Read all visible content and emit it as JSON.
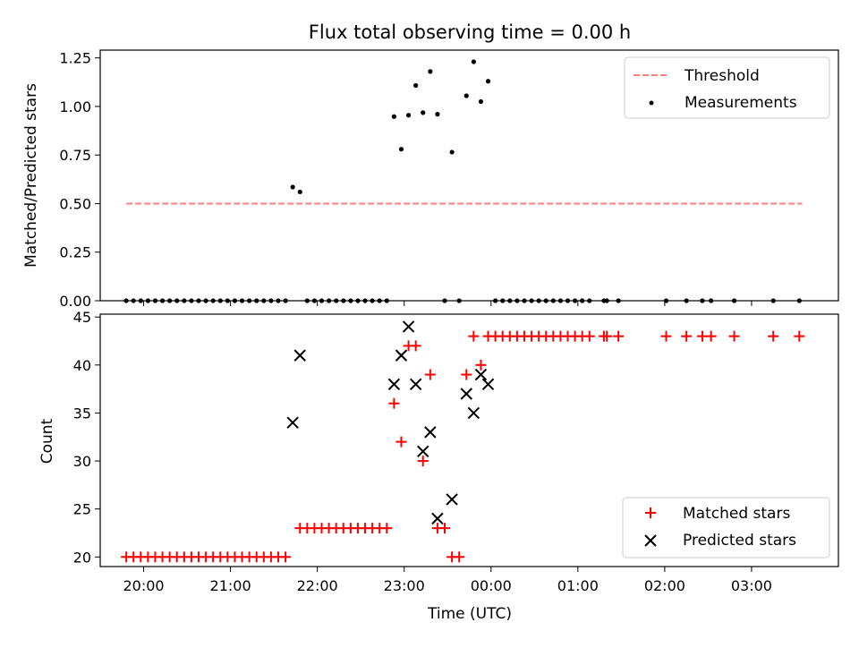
{
  "chart_data": [
    {
      "type": "scatter",
      "title": "Flux total observing time = 0.00 h",
      "xlabel": "",
      "ylabel": "Matched/Predicted stars",
      "xlim": [
        "19:30",
        "04:00"
      ],
      "ylim": [
        0,
        1.29
      ],
      "yticks": [
        "0.00",
        "0.25",
        "0.50",
        "0.75",
        "1.00",
        "1.25"
      ],
      "legend_position": "top-right",
      "grid": false,
      "series": [
        {
          "name": "Threshold",
          "style": "dashed-line",
          "color": "#ff7f7f",
          "x": [
            "19:48",
            "03:35"
          ],
          "y": [
            0.5,
            0.5
          ]
        },
        {
          "name": "Measurements",
          "style": "dots",
          "color": "#000000",
          "points": [
            [
              "19:48",
              0.0
            ],
            [
              "19:53",
              0.0
            ],
            [
              "19:58",
              0.0
            ],
            [
              "20:03",
              0.0
            ],
            [
              "20:08",
              0.0
            ],
            [
              "20:13",
              0.0
            ],
            [
              "20:18",
              0.0
            ],
            [
              "20:23",
              0.0
            ],
            [
              "20:28",
              0.0
            ],
            [
              "20:33",
              0.0
            ],
            [
              "20:38",
              0.0
            ],
            [
              "20:43",
              0.0
            ],
            [
              "20:48",
              0.0
            ],
            [
              "20:53",
              0.0
            ],
            [
              "20:58",
              0.0
            ],
            [
              "21:03",
              0.0
            ],
            [
              "21:08",
              0.0
            ],
            [
              "21:13",
              0.0
            ],
            [
              "21:18",
              0.0
            ],
            [
              "21:23",
              0.0
            ],
            [
              "21:28",
              0.0
            ],
            [
              "21:33",
              0.0
            ],
            [
              "21:38",
              0.0
            ],
            [
              "21:43",
              0.585
            ],
            [
              "21:48",
              0.56
            ],
            [
              "21:53",
              0.0
            ],
            [
              "21:58",
              0.0
            ],
            [
              "22:03",
              0.0
            ],
            [
              "22:08",
              0.0
            ],
            [
              "22:13",
              0.0
            ],
            [
              "22:18",
              0.0
            ],
            [
              "22:23",
              0.0
            ],
            [
              "22:28",
              0.0
            ],
            [
              "22:33",
              0.0
            ],
            [
              "22:38",
              0.0
            ],
            [
              "22:43",
              0.0
            ],
            [
              "22:48",
              0.0
            ],
            [
              "22:53",
              0.948
            ],
            [
              "22:58",
              0.78
            ],
            [
              "23:03",
              0.955
            ],
            [
              "23:08",
              1.108
            ],
            [
              "23:13",
              0.968
            ],
            [
              "23:18",
              1.18
            ],
            [
              "23:23",
              0.96
            ],
            [
              "23:28",
              0.0
            ],
            [
              "23:33",
              0.765
            ],
            [
              "23:38",
              0.0
            ],
            [
              "23:43",
              1.055
            ],
            [
              "23:48",
              1.23
            ],
            [
              "23:53",
              1.025
            ],
            [
              "23:58",
              1.13
            ],
            [
              "00:03",
              0.0
            ],
            [
              "00:08",
              0.0
            ],
            [
              "00:13",
              0.0
            ],
            [
              "00:18",
              0.0
            ],
            [
              "00:23",
              0.0
            ],
            [
              "00:28",
              0.0
            ],
            [
              "00:33",
              0.0
            ],
            [
              "00:38",
              0.0
            ],
            [
              "00:43",
              0.0
            ],
            [
              "00:48",
              0.0
            ],
            [
              "00:53",
              0.0
            ],
            [
              "00:58",
              0.0
            ],
            [
              "01:03",
              0.0
            ],
            [
              "01:08",
              0.0
            ],
            [
              "01:18",
              0.0
            ],
            [
              "01:20",
              0.0
            ],
            [
              "01:28",
              0.0
            ],
            [
              "02:01",
              0.0
            ],
            [
              "02:15",
              0.0
            ],
            [
              "02:26",
              0.0
            ],
            [
              "02:32",
              0.0
            ],
            [
              "02:48",
              0.0
            ],
            [
              "03:15",
              0.0
            ],
            [
              "03:33",
              0.0
            ]
          ]
        }
      ]
    },
    {
      "type": "scatter",
      "title": "",
      "xlabel": "Time (UTC)",
      "ylabel": "Count",
      "xlim": [
        "19:30",
        "04:00"
      ],
      "ylim": [
        19,
        45.3
      ],
      "xticks": [
        "20:00",
        "21:00",
        "22:00",
        "23:00",
        "00:00",
        "01:00",
        "02:00",
        "03:00"
      ],
      "yticks": [
        "20",
        "25",
        "30",
        "35",
        "40",
        "45"
      ],
      "legend_position": "bottom-right",
      "grid": false,
      "series": [
        {
          "name": "Matched stars",
          "marker": "plus",
          "color": "#ff0000",
          "points": [
            [
              "19:48",
              20
            ],
            [
              "19:53",
              20
            ],
            [
              "19:58",
              20
            ],
            [
              "20:03",
              20
            ],
            [
              "20:08",
              20
            ],
            [
              "20:13",
              20
            ],
            [
              "20:18",
              20
            ],
            [
              "20:23",
              20
            ],
            [
              "20:28",
              20
            ],
            [
              "20:33",
              20
            ],
            [
              "20:38",
              20
            ],
            [
              "20:43",
              20
            ],
            [
              "20:48",
              20
            ],
            [
              "20:53",
              20
            ],
            [
              "20:58",
              20
            ],
            [
              "21:03",
              20
            ],
            [
              "21:08",
              20
            ],
            [
              "21:13",
              20
            ],
            [
              "21:18",
              20
            ],
            [
              "21:23",
              20
            ],
            [
              "21:28",
              20
            ],
            [
              "21:33",
              20
            ],
            [
              "21:38",
              20
            ],
            [
              "21:48",
              23
            ],
            [
              "21:53",
              23
            ],
            [
              "21:58",
              23
            ],
            [
              "22:03",
              23
            ],
            [
              "22:08",
              23
            ],
            [
              "22:13",
              23
            ],
            [
              "22:18",
              23
            ],
            [
              "22:23",
              23
            ],
            [
              "22:28",
              23
            ],
            [
              "22:33",
              23
            ],
            [
              "22:38",
              23
            ],
            [
              "22:43",
              23
            ],
            [
              "22:48",
              23
            ],
            [
              "22:53",
              36
            ],
            [
              "22:58",
              32
            ],
            [
              "23:03",
              42
            ],
            [
              "23:08",
              42
            ],
            [
              "23:13",
              30
            ],
            [
              "23:18",
              39
            ],
            [
              "23:23",
              23
            ],
            [
              "23:28",
              23
            ],
            [
              "23:33",
              20
            ],
            [
              "23:38",
              20
            ],
            [
              "23:43",
              39
            ],
            [
              "23:48",
              43
            ],
            [
              "23:53",
              40
            ],
            [
              "23:58",
              43
            ],
            [
              "00:03",
              43
            ],
            [
              "00:08",
              43
            ],
            [
              "00:13",
              43
            ],
            [
              "00:18",
              43
            ],
            [
              "00:23",
              43
            ],
            [
              "00:28",
              43
            ],
            [
              "00:33",
              43
            ],
            [
              "00:38",
              43
            ],
            [
              "00:43",
              43
            ],
            [
              "00:48",
              43
            ],
            [
              "00:53",
              43
            ],
            [
              "00:58",
              43
            ],
            [
              "01:03",
              43
            ],
            [
              "01:08",
              43
            ],
            [
              "01:18",
              43
            ],
            [
              "01:20",
              43
            ],
            [
              "01:28",
              43
            ],
            [
              "02:01",
              43
            ],
            [
              "02:15",
              43
            ],
            [
              "02:26",
              43
            ],
            [
              "02:32",
              43
            ],
            [
              "02:48",
              43
            ],
            [
              "03:15",
              43
            ],
            [
              "03:33",
              43
            ]
          ]
        },
        {
          "name": "Predicted stars",
          "marker": "x",
          "color": "#000000",
          "points": [
            [
              "21:43",
              34
            ],
            [
              "21:48",
              41
            ],
            [
              "22:53",
              38
            ],
            [
              "22:58",
              41
            ],
            [
              "23:03",
              44
            ],
            [
              "23:08",
              38
            ],
            [
              "23:13",
              31
            ],
            [
              "23:18",
              33
            ],
            [
              "23:23",
              24
            ],
            [
              "23:33",
              26
            ],
            [
              "23:43",
              37
            ],
            [
              "23:48",
              35
            ],
            [
              "23:53",
              39
            ],
            [
              "23:58",
              38
            ]
          ]
        }
      ]
    }
  ]
}
